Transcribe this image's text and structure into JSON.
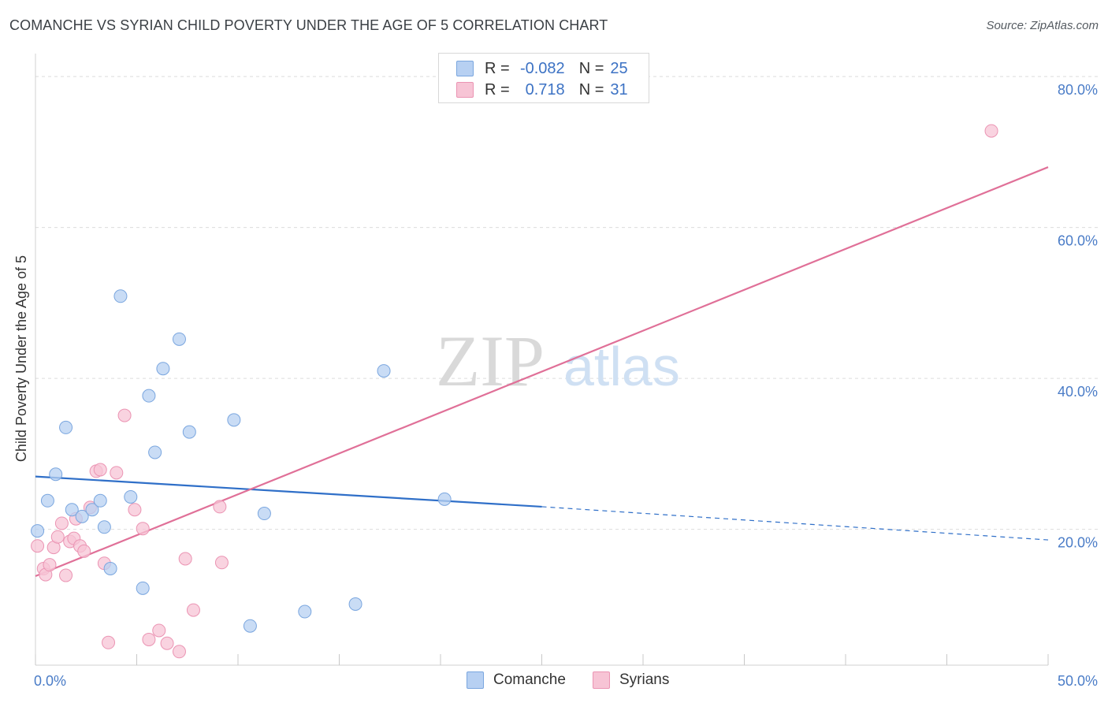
{
  "title": "COMANCHE VS SYRIAN CHILD POVERTY UNDER THE AGE OF 5 CORRELATION CHART",
  "source": "Source: ZipAtlas.com",
  "watermark": {
    "zip": "ZIP",
    "atlas": "atlas"
  },
  "legend": {
    "rows": [
      {
        "r_label": "R =",
        "r_value": "-0.082",
        "n_label": "N =",
        "n_value": "25"
      },
      {
        "r_label": "R =",
        "r_value": "0.718",
        "n_label": "N =",
        "n_value": "31"
      }
    ]
  },
  "bottom_legend": {
    "comanche": "Comanche",
    "syrians": "Syrians"
  },
  "colors": {
    "comanche_fill": "#b7d0f2",
    "comanche_stroke": "#7aa6df",
    "comanche_line": "#2f6fc8",
    "syrians_fill": "#f7c4d5",
    "syrians_stroke": "#eb94b3",
    "syrians_line": "#e07098",
    "tick_text": "#4a7cc7",
    "grid": "#dcdcdc"
  },
  "chart_data": {
    "type": "scatter",
    "ylabel": "Child Poverty Under the Age of 5",
    "xlabel": "",
    "xlim": [
      0,
      50
    ],
    "ylim": [
      2,
      82
    ],
    "x_tick_labels": [
      {
        "v": 0,
        "label": "0.0%"
      },
      {
        "v": 50,
        "label": "50.0%"
      }
    ],
    "y_tick_labels": [
      {
        "v": 20,
        "label": "20.0%"
      },
      {
        "v": 40,
        "label": "40.0%"
      },
      {
        "v": 60,
        "label": "60.0%"
      },
      {
        "v": 80,
        "label": "80.0%"
      }
    ],
    "grid_y": [
      20,
      40,
      60,
      80
    ],
    "grid": true,
    "legend_position": "top-center",
    "series": [
      {
        "name": "Comanche",
        "r": -0.082,
        "n": 25,
        "points": [
          [
            0.1,
            19.8
          ],
          [
            0.6,
            23.8
          ],
          [
            1.0,
            27.3
          ],
          [
            1.5,
            33.5
          ],
          [
            1.8,
            22.6
          ],
          [
            2.3,
            21.7
          ],
          [
            2.8,
            22.6
          ],
          [
            3.2,
            23.8
          ],
          [
            3.4,
            20.3
          ],
          [
            3.7,
            14.8
          ],
          [
            4.2,
            50.9
          ],
          [
            4.7,
            24.3
          ],
          [
            5.3,
            12.2
          ],
          [
            5.6,
            37.7
          ],
          [
            5.9,
            30.2
          ],
          [
            6.3,
            41.3
          ],
          [
            7.1,
            45.2
          ],
          [
            7.6,
            32.9
          ],
          [
            9.8,
            34.5
          ],
          [
            10.6,
            7.2
          ],
          [
            11.3,
            22.1
          ],
          [
            13.3,
            9.1
          ],
          [
            15.8,
            10.1
          ],
          [
            17.2,
            41.0
          ],
          [
            20.2,
            24.0
          ]
        ],
        "trend": {
          "x0": 0,
          "y0": 27.0,
          "x1": 25,
          "y1": 23.0,
          "dash_to_x": 50,
          "dash_to_y": 18.6
        }
      },
      {
        "name": "Syrians",
        "r": 0.718,
        "n": 31,
        "points": [
          [
            0.1,
            17.8
          ],
          [
            0.4,
            14.8
          ],
          [
            0.5,
            14.0
          ],
          [
            0.7,
            15.3
          ],
          [
            0.9,
            17.6
          ],
          [
            1.1,
            19.0
          ],
          [
            1.3,
            20.8
          ],
          [
            1.5,
            13.9
          ],
          [
            1.7,
            18.4
          ],
          [
            1.9,
            18.8
          ],
          [
            2.0,
            21.4
          ],
          [
            2.2,
            17.8
          ],
          [
            2.4,
            17.1
          ],
          [
            2.7,
            22.9
          ],
          [
            3.0,
            27.7
          ],
          [
            3.2,
            27.9
          ],
          [
            3.4,
            15.5
          ],
          [
            3.6,
            5.0
          ],
          [
            4.0,
            27.5
          ],
          [
            4.4,
            35.1
          ],
          [
            4.9,
            22.6
          ],
          [
            5.3,
            20.1
          ],
          [
            5.6,
            5.4
          ],
          [
            6.1,
            6.6
          ],
          [
            6.5,
            4.9
          ],
          [
            7.1,
            3.8
          ],
          [
            7.4,
            16.1
          ],
          [
            7.8,
            9.3
          ],
          [
            9.1,
            23.0
          ],
          [
            9.2,
            15.6
          ],
          [
            47.2,
            72.8
          ]
        ],
        "trend": {
          "x0": 0,
          "y0": 13.8,
          "x1": 50,
          "y1": 68.0
        }
      }
    ]
  }
}
